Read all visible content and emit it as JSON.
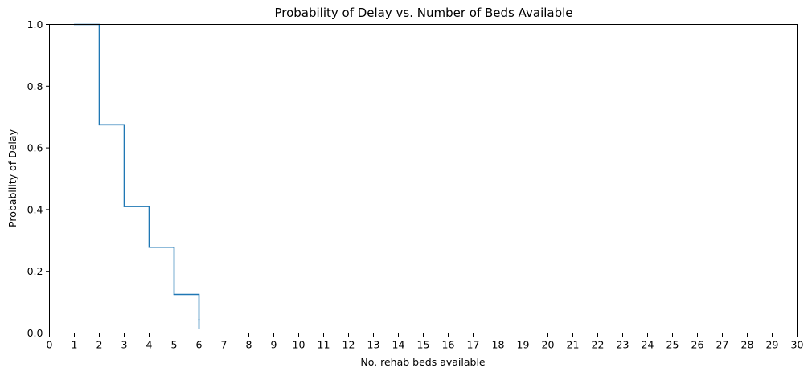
{
  "chart_data": {
    "type": "line",
    "drawstyle": "steps-post",
    "title": "Probability of Delay vs. Number of Beds Available",
    "xlabel": "No. rehab beds available",
    "ylabel": "Probability of Delay",
    "xlim": [
      0,
      30
    ],
    "ylim": [
      0,
      1
    ],
    "xticks": [
      0,
      1,
      2,
      3,
      4,
      5,
      6,
      7,
      8,
      9,
      10,
      11,
      12,
      13,
      14,
      15,
      16,
      17,
      18,
      19,
      20,
      21,
      22,
      23,
      24,
      25,
      26,
      27,
      28,
      29,
      30
    ],
    "yticks": [
      "0.0",
      "0.2",
      "0.4",
      "0.6",
      "0.8",
      "1.0"
    ],
    "grid": false,
    "series": [
      {
        "color": "#1f77b4",
        "x": [
          1,
          2,
          3,
          4,
          5,
          6
        ],
        "y": [
          1.0,
          0.675,
          0.41,
          0.278,
          0.125,
          0.044
        ],
        "end_y": 0.012
      }
    ]
  }
}
